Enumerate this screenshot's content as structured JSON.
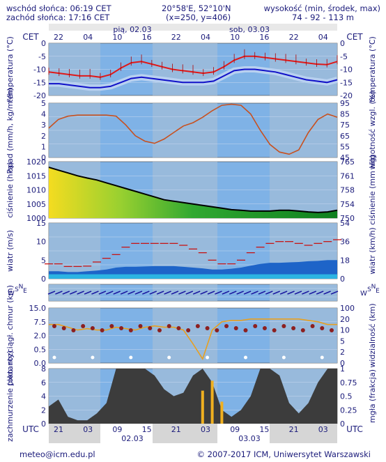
{
  "header": {
    "sunrise": "wschód słońca: 06:19 CET",
    "sunset": "zachód słońca: 17:16 CET",
    "coords": "20°58'E, 52°10'N",
    "grid": "(x=250, y=406)",
    "height_label": "wysokość (min, środek, max)",
    "height_values": "74 - 92 - 113 m"
  },
  "top_axis": {
    "tz": "CET",
    "hours": [
      "22",
      "04",
      "10",
      "16",
      "22",
      "04",
      "10",
      "16",
      "22",
      "04"
    ],
    "days": [
      "pią, 02.03",
      "sob, 03.03"
    ]
  },
  "bottom_axis": {
    "tz": "UTC",
    "hours": [
      "21",
      "03",
      "09",
      "15",
      "21",
      "03",
      "09",
      "15",
      "21",
      "03"
    ],
    "dates": [
      "02.03",
      "03.03"
    ]
  },
  "footer": {
    "email": "meteo@icm.edu.pl",
    "copyright": "© 2007-2017 ICM, Uniwersytet Warszawski"
  },
  "colors": {
    "panel_bg": "#7fb2e6",
    "night_band": "#c8c8c8",
    "temp_red": "#e01818",
    "temp_blue": "#1010c8",
    "humidity": "#c8501e",
    "wind_bar": "#1e64c8",
    "gust": "#c81414",
    "cloud_dark": "#3c3c3c"
  },
  "chart_data": [
    {
      "name": "temperature",
      "type": "line",
      "ylabel_left": "temperatura (°C)",
      "ylabel_right": "temperatura (°C)",
      "ylim": [
        -20,
        0
      ],
      "yticks": [
        "0",
        "-5",
        "-10",
        "-15",
        "-20"
      ],
      "series": [
        {
          "values": [
            -11,
            -11.5,
            -12,
            -12.5,
            -12.5,
            -13,
            -12,
            -9.5,
            -7.5,
            -7,
            -8,
            -9,
            -10,
            -10.5,
            -11,
            -11.5,
            -11,
            -9,
            -6.5,
            -5,
            -5,
            -5.5,
            -6,
            -6.5,
            -7,
            -7.5,
            -8,
            -8.2,
            -7
          ]
        },
        {
          "values": [
            -15.5,
            -15.5,
            -16,
            -16.5,
            -17,
            -17,
            -16.5,
            -15,
            -13.5,
            -13,
            -13.5,
            -14,
            -14.5,
            -15,
            -15,
            -15,
            -14.5,
            -12.5,
            -10.5,
            -10,
            -10,
            -10.5,
            -11,
            -12,
            -13,
            -14,
            -14.5,
            -15,
            -14
          ]
        }
      ]
    },
    {
      "name": "precipitation_humidity",
      "type": "line",
      "ylabel_left": "opad (mm/h, kg/m²/h)",
      "ylabel_right": "wilgotność wzgl. (%)",
      "ylim": [
        0,
        5
      ],
      "yticks": [
        "5",
        "4",
        "3",
        "2",
        "1",
        "0"
      ],
      "y2lim": [
        45,
        95
      ],
      "y2ticks": [
        "95",
        "85",
        "75",
        "65",
        "55",
        "45"
      ],
      "series": [
        {
          "values": [
            72,
            80,
            83,
            84,
            84,
            84,
            84,
            83,
            75,
            65,
            60,
            58,
            62,
            68,
            74,
            77,
            82,
            88,
            93,
            94,
            93,
            85,
            70,
            57,
            50,
            48,
            52,
            68,
            80,
            85,
            82
          ]
        }
      ]
    },
    {
      "name": "pressure",
      "type": "area",
      "ylabel_left": "ciśnienie (hPa)",
      "ylabel_right": "ciśnienie (mm Hg)",
      "ylim": [
        1000,
        1020
      ],
      "yticks": [
        "1020",
        "1015",
        "1010",
        "1005",
        "1000"
      ],
      "y2ticks": [
        "765",
        "761",
        "758",
        "754",
        "750"
      ],
      "series": [
        {
          "values": [
            1018,
            1017,
            1016,
            1015,
            1014.2,
            1013.5,
            1012.5,
            1011.5,
            1010.5,
            1009.5,
            1008.5,
            1007.5,
            1006.5,
            1006,
            1005.5,
            1005,
            1004.5,
            1004,
            1003.5,
            1003,
            1002.8,
            1002.5,
            1002.5,
            1002.5,
            1002.8,
            1002.8,
            1002.5,
            1002.2,
            1002,
            1002.2,
            1002.8
          ]
        }
      ]
    },
    {
      "name": "wind",
      "type": "bar",
      "ylabel_left": "wiatr (m/s)",
      "ylabel_right": "wiatr (km/h)",
      "ylim": [
        0,
        15
      ],
      "yticks": [
        "15",
        "10",
        "5",
        "0"
      ],
      "y2ticks": [
        "54",
        "36",
        "18",
        "0"
      ],
      "series": [
        {
          "values": [
            2,
            2,
            1.8,
            1.8,
            2,
            2.2,
            2.5,
            3,
            3.2,
            3.2,
            3.3,
            3.4,
            3.4,
            3.4,
            3.2,
            3,
            2.8,
            2.5,
            2.5,
            2.7,
            3,
            3.5,
            4,
            4.3,
            4.3,
            4.4,
            4.5,
            4.7,
            4.8,
            5,
            5
          ]
        },
        {
          "values": [
            4,
            4,
            3.3,
            3.3,
            3.4,
            4.5,
            5.5,
            6.5,
            8.5,
            9.5,
            9.5,
            9.5,
            9.5,
            9.5,
            9,
            8,
            7,
            5,
            4,
            4,
            5,
            7,
            8.5,
            9.5,
            10,
            10,
            9.5,
            9,
            9.5,
            10,
            10.5
          ]
        }
      ]
    },
    {
      "name": "wind_direction",
      "type": "scatter",
      "ylabel_left": "W S N E",
      "ylabel_right": "W S N E"
    },
    {
      "name": "cloud_visibility",
      "type": "scatter",
      "ylabel_left": "pion. rozciągł. chmur (km)",
      "ylabel_right": "widzialność (km)",
      "ylim": [
        0,
        15
      ],
      "yticks": [
        "15.0",
        "7.5",
        "2.0",
        "0.5",
        "0.0"
      ],
      "y2ticks": [
        "100",
        "20",
        "10",
        "5",
        "2",
        "0"
      ],
      "series": [
        {
          "values": [
            28,
            28,
            26,
            24,
            25,
            24,
            24,
            26,
            25,
            24,
            26,
            27,
            26,
            26,
            24,
            14,
            3,
            24,
            30,
            31,
            31,
            32,
            32,
            32,
            32,
            32,
            32,
            31,
            30,
            28,
            28
          ]
        }
      ]
    },
    {
      "name": "cloud_cover_fog",
      "type": "area",
      "ylabel_left": "zachmurzenie (oktanty)",
      "ylabel_right": "mgła (frakcja)",
      "ylim": [
        0,
        8
      ],
      "yticks": [
        "8",
        "6",
        "4",
        "2",
        "0"
      ],
      "y2lim": [
        0,
        1
      ],
      "y2ticks": [
        "1",
        "0.75",
        "0.5",
        "0.25",
        "0"
      ],
      "series": [
        {
          "values": [
            2.5,
            3.5,
            1,
            0.5,
            0.5,
            1.5,
            3,
            8,
            8,
            8,
            8,
            7,
            5,
            4,
            4.5,
            7,
            8,
            6,
            2,
            1,
            2,
            4,
            8,
            8,
            7,
            3,
            1.5,
            3,
            6,
            8,
            8
          ]
        },
        {
          "values": [
            0,
            0,
            0,
            0,
            0,
            0,
            0,
            0,
            0,
            0,
            0,
            0,
            0,
            0,
            0,
            0,
            0.6,
            0.78,
            0.4,
            0,
            0,
            0,
            0,
            0,
            0,
            0,
            0,
            0,
            0,
            0,
            0
          ]
        }
      ]
    }
  ]
}
